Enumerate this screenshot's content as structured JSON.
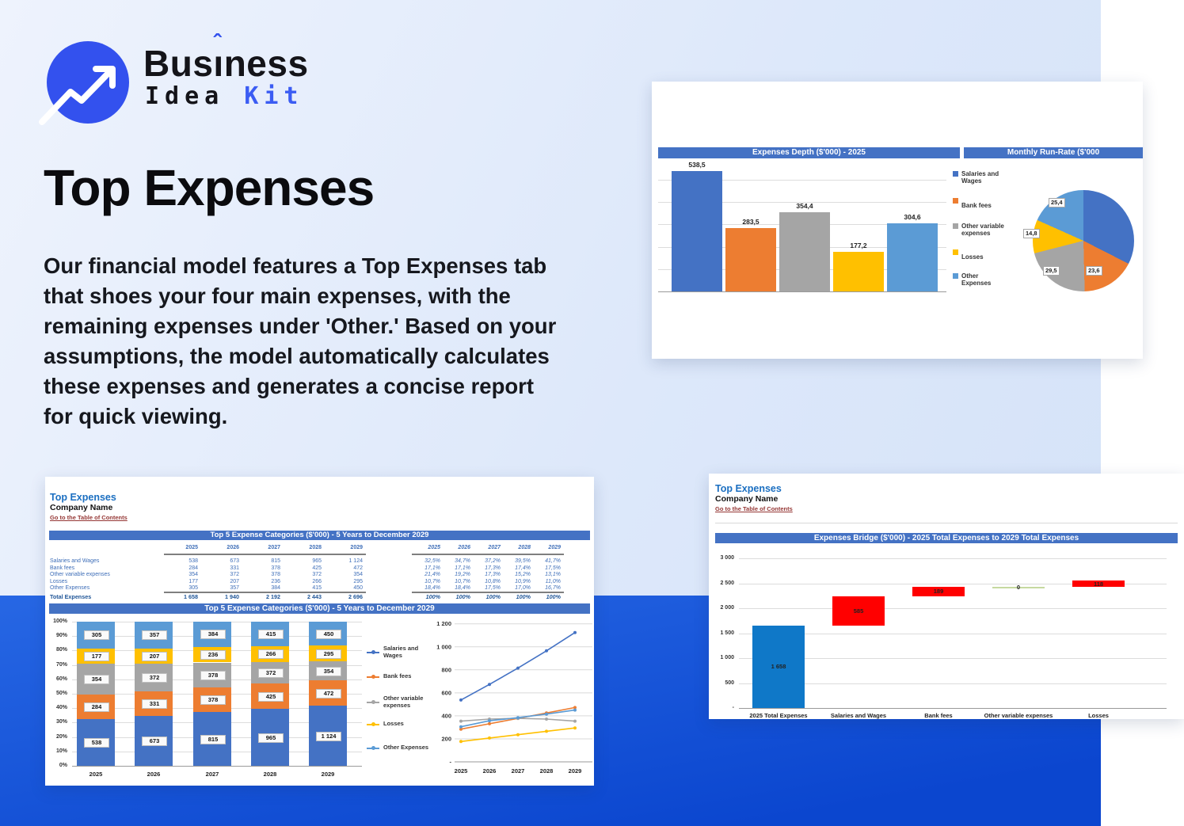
{
  "logo": {
    "word1": "Business",
    "pre": "Bus",
    "i_glyph": "ı",
    "hat": "ˆ",
    "post": "ness",
    "idea": "Idea",
    "kit": "Kit"
  },
  "hero": {
    "title": "Top Expenses",
    "body": "Our financial model features a Top Expenses tab that shoes your four main expenses, with the remaining expenses under 'Other.' Based on your assumptions, the model automatically calculates these expenses and generates a concise report for quick viewing."
  },
  "colors": {
    "accent": "#3351EE",
    "banner_blue": "#4472C4",
    "link_red": "#953735",
    "card_title_blue": "#1B6FC1",
    "band_blue": "#1450D6",
    "series": [
      "#4472C4",
      "#ED7D31",
      "#A5A5A5",
      "#FFC000",
      "#5B9BD5"
    ],
    "waterfall_blue": "#0F78C8",
    "waterfall_red": "#FF0000",
    "waterfall_zero_green": "#C6D9A0"
  },
  "card_depth": {
    "banner_right": "Monthly Run-Rate ($'000"
  },
  "card_top5": {
    "title": "Top Expenses",
    "company": "Company Name",
    "link": "Go to the Table of Contents"
  },
  "card_bridge": {
    "title": "Top Expenses",
    "company": "Company Name",
    "link": "Go to the Table of Contents",
    "banner": "Expenses Bridge ($'000) - 2025 Total Expenses to 2029 Total Expenses"
  },
  "chart_data": [
    {
      "id": "expenses_depth",
      "type": "bar",
      "title": "Expenses Depth ($'000) - 2025",
      "categories": [
        "Salaries and Wages",
        "Bank fees",
        "Other variable expenses",
        "Losses",
        "Other Expenses"
      ],
      "values": [
        538.5,
        283.5,
        354.4,
        177.2,
        304.6
      ],
      "labels": [
        "538,5",
        "283,5",
        "354,4",
        "177,2",
        "304,6"
      ],
      "colors": [
        "#4472C4",
        "#ED7D31",
        "#A5A5A5",
        "#FFC000",
        "#5B9BD5"
      ],
      "ylim": [
        0,
        500
      ],
      "gridstep": 100,
      "grid": true,
      "legend_position": "right"
    },
    {
      "id": "monthly_run_rate",
      "type": "pie",
      "title": "Monthly Run-Rate ($'000",
      "slices": [
        {
          "name": "Salaries and Wages",
          "pct": 32.5,
          "label": null
        },
        {
          "name": "Bank fees",
          "pct": 17.1,
          "label": "23,6"
        },
        {
          "name": "Other variable expenses",
          "pct": 21.4,
          "label": "29,5"
        },
        {
          "name": "Losses",
          "pct": 10.7,
          "label": "14,8"
        },
        {
          "name": "Other Expenses",
          "pct": 18.4,
          "label": "25,4"
        }
      ]
    },
    {
      "id": "top5_table",
      "type": "table",
      "title": "Top 5 Expense Categories ($'000) - 5 Years to December 2029",
      "years": [
        "2025",
        "2026",
        "2027",
        "2028",
        "2029"
      ],
      "rows": [
        {
          "label": "Salaries and Wages",
          "values": [
            "538",
            "673",
            "815",
            "965",
            "1 124"
          ],
          "pcts": [
            "32,5%",
            "34,7%",
            "37,2%",
            "39,5%",
            "41,7%"
          ],
          "total": false
        },
        {
          "label": "Bank fees",
          "values": [
            "284",
            "331",
            "378",
            "425",
            "472"
          ],
          "pcts": [
            "17,1%",
            "17,1%",
            "17,3%",
            "17,4%",
            "17,5%"
          ],
          "total": false
        },
        {
          "label": "Other variable expenses",
          "values": [
            "354",
            "372",
            "378",
            "372",
            "354"
          ],
          "pcts": [
            "21,4%",
            "19,2%",
            "17,3%",
            "15,2%",
            "13,1%"
          ],
          "total": false
        },
        {
          "label": "Losses",
          "values": [
            "177",
            "207",
            "236",
            "266",
            "295"
          ],
          "pcts": [
            "10,7%",
            "10,7%",
            "10,8%",
            "10,9%",
            "11,0%"
          ],
          "total": false
        },
        {
          "label": "Other Expenses",
          "values": [
            "305",
            "357",
            "384",
            "415",
            "450"
          ],
          "pcts": [
            "18,4%",
            "18,4%",
            "17,5%",
            "17,0%",
            "16,7%"
          ],
          "total": false
        },
        {
          "label": "Total Expenses",
          "values": [
            "1 658",
            "1 940",
            "2 192",
            "2 443",
            "2 696"
          ],
          "pcts": [
            "100%",
            "100%",
            "100%",
            "100%",
            "100%"
          ],
          "total": true
        }
      ]
    },
    {
      "id": "top5_stacked",
      "type": "bar-stacked-100",
      "title": "Top 5 Expense Categories ($'000) - 5 Years to December 2029",
      "categories": [
        "2025",
        "2026",
        "2027",
        "2028",
        "2029"
      ],
      "yticks": [
        "0%",
        "10%",
        "20%",
        "30%",
        "40%",
        "50%",
        "60%",
        "70%",
        "80%",
        "90%",
        "100%"
      ],
      "series": [
        {
          "name": "Salaries and Wages",
          "color": "#4472C4",
          "values": [
            538,
            673,
            815,
            965,
            1124
          ],
          "labels": [
            "538",
            "673",
            "815",
            "965",
            "1 124"
          ]
        },
        {
          "name": "Bank fees",
          "color": "#ED7D31",
          "values": [
            284,
            331,
            378,
            425,
            472
          ],
          "labels": [
            "284",
            "331",
            "378",
            "425",
            "472"
          ]
        },
        {
          "name": "Other variable expenses",
          "color": "#A5A5A5",
          "values": [
            354,
            372,
            378,
            372,
            354
          ],
          "labels": [
            "354",
            "372",
            "378",
            "372",
            "354"
          ]
        },
        {
          "name": "Losses",
          "color": "#FFC000",
          "values": [
            177,
            207,
            236,
            266,
            295
          ],
          "labels": [
            "177",
            "207",
            "236",
            "266",
            "295"
          ]
        },
        {
          "name": "Other Expenses",
          "color": "#5B9BD5",
          "values": [
            305,
            357,
            384,
            415,
            450
          ],
          "labels": [
            "305",
            "357",
            "384",
            "415",
            "450"
          ]
        }
      ]
    },
    {
      "id": "top5_lines",
      "type": "line",
      "x": [
        "2025",
        "2026",
        "2027",
        "2028",
        "2029"
      ],
      "yticks": [
        "-",
        "200",
        "400",
        "600",
        "800",
        "1 000",
        "1 200"
      ],
      "ylim": [
        0,
        1200
      ],
      "grid": true,
      "series": [
        {
          "name": "Salaries and Wages",
          "color": "#4472C4",
          "values": [
            538,
            673,
            815,
            965,
            1124
          ]
        },
        {
          "name": "Bank fees",
          "color": "#ED7D31",
          "values": [
            284,
            331,
            378,
            425,
            472
          ]
        },
        {
          "name": "Other variable expenses",
          "color": "#A5A5A5",
          "values": [
            354,
            372,
            378,
            372,
            354
          ]
        },
        {
          "name": "Losses",
          "color": "#FFC000",
          "values": [
            177,
            207,
            236,
            266,
            295
          ]
        },
        {
          "name": "Other Expenses",
          "color": "#5B9BD5",
          "values": [
            305,
            357,
            384,
            415,
            450
          ]
        }
      ]
    },
    {
      "id": "expenses_bridge",
      "type": "waterfall",
      "title": "Expenses Bridge ($'000) - 2025 Total Expenses to 2029 Total Expenses",
      "categories": [
        "2025 Total Expenses",
        "Salaries and Wages",
        "Bank fees",
        "Other variable expenses",
        "Losses"
      ],
      "values": [
        1658,
        585,
        189,
        0,
        118
      ],
      "labels": [
        "1 658",
        "585",
        "189",
        "0",
        "118"
      ],
      "colors": [
        "#0F78C8",
        "#FF0000",
        "#FF0000",
        "#C6D9A0",
        "#FF0000"
      ],
      "yticks": [
        "3 000",
        "2 500",
        "2 000",
        "1 500",
        "1 000",
        "500",
        "-"
      ],
      "ylim": [
        0,
        3000
      ]
    }
  ]
}
